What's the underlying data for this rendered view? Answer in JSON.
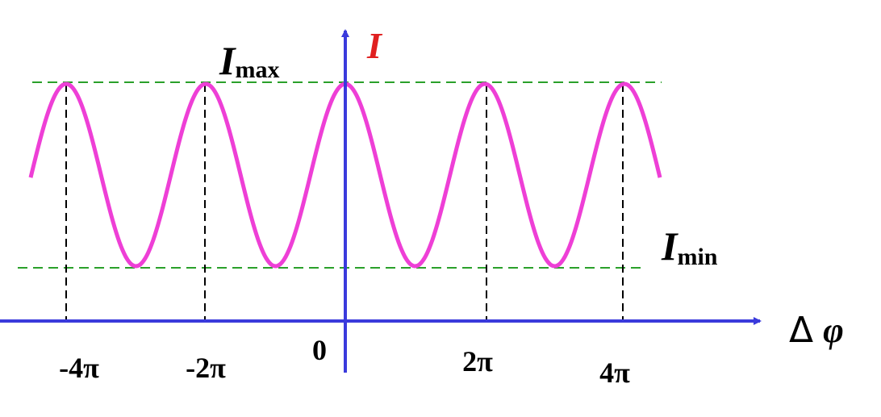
{
  "axis_label_y": "I",
  "axis_label_x": {
    "delta": "Δ",
    "symbol": "φ"
  },
  "max_label": {
    "symbol": "I",
    "subscript": "max"
  },
  "min_label": {
    "symbol": "I",
    "subscript": "min"
  },
  "x_ticks": [
    "-4π",
    "-2π",
    "0",
    "2π",
    "4π"
  ]
}
